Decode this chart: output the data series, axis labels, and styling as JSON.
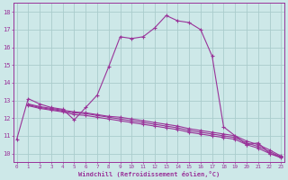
{
  "xlabel": "Windchill (Refroidissement éolien,°C)",
  "background_color": "#cde8e8",
  "grid_color": "#aacccc",
  "line_color": "#993399",
  "spine_color": "#993399",
  "xlim": [
    -0.3,
    23.3
  ],
  "ylim": [
    9.5,
    18.5
  ],
  "xticks": [
    0,
    1,
    2,
    3,
    4,
    5,
    6,
    7,
    8,
    9,
    10,
    11,
    12,
    13,
    14,
    15,
    16,
    17,
    18,
    19,
    20,
    21,
    22,
    23
  ],
  "yticks": [
    10,
    11,
    12,
    13,
    14,
    15,
    16,
    17,
    18
  ],
  "series": [
    {
      "x": [
        0,
        1,
        2,
        3,
        4,
        5,
        6,
        7,
        8,
        9,
        10,
        11,
        12,
        13,
        14,
        15,
        16,
        17,
        18,
        20,
        21,
        22,
        23
      ],
      "y": [
        10.8,
        13.1,
        12.8,
        12.6,
        12.5,
        11.9,
        12.6,
        13.3,
        14.9,
        16.6,
        16.5,
        16.6,
        17.1,
        17.8,
        17.5,
        17.4,
        17.0,
        15.5,
        11.5,
        10.5,
        10.6,
        10.0,
        9.8
      ]
    },
    {
      "x": [
        1,
        2,
        3,
        4,
        5,
        6,
        7,
        8,
        9,
        10,
        11,
        12,
        13,
        14,
        15,
        16,
        17,
        18,
        19,
        20,
        21,
        22,
        23
      ],
      "y": [
        12.8,
        12.65,
        12.55,
        12.45,
        12.35,
        12.3,
        12.2,
        12.1,
        12.05,
        11.95,
        11.85,
        11.75,
        11.65,
        11.55,
        11.4,
        11.3,
        11.2,
        11.1,
        11.0,
        10.7,
        10.5,
        10.2,
        9.85
      ]
    },
    {
      "x": [
        1,
        2,
        3,
        4,
        5,
        6,
        7,
        8,
        9,
        10,
        11,
        12,
        13,
        14,
        15,
        16,
        17,
        18,
        19,
        20,
        21,
        22,
        23
      ],
      "y": [
        12.75,
        12.6,
        12.5,
        12.4,
        12.3,
        12.25,
        12.15,
        12.05,
        11.95,
        11.85,
        11.75,
        11.65,
        11.55,
        11.45,
        11.3,
        11.2,
        11.1,
        11.0,
        10.9,
        10.6,
        10.4,
        10.1,
        9.8
      ]
    },
    {
      "x": [
        1,
        2,
        3,
        4,
        5,
        6,
        7,
        8,
        9,
        10,
        11,
        12,
        13,
        14,
        15,
        16,
        17,
        18,
        19,
        20,
        21,
        22,
        23
      ],
      "y": [
        12.7,
        12.55,
        12.45,
        12.35,
        12.2,
        12.15,
        12.05,
        11.95,
        11.85,
        11.75,
        11.65,
        11.55,
        11.45,
        11.35,
        11.2,
        11.1,
        11.0,
        10.9,
        10.8,
        10.5,
        10.3,
        10.0,
        9.75
      ]
    }
  ]
}
